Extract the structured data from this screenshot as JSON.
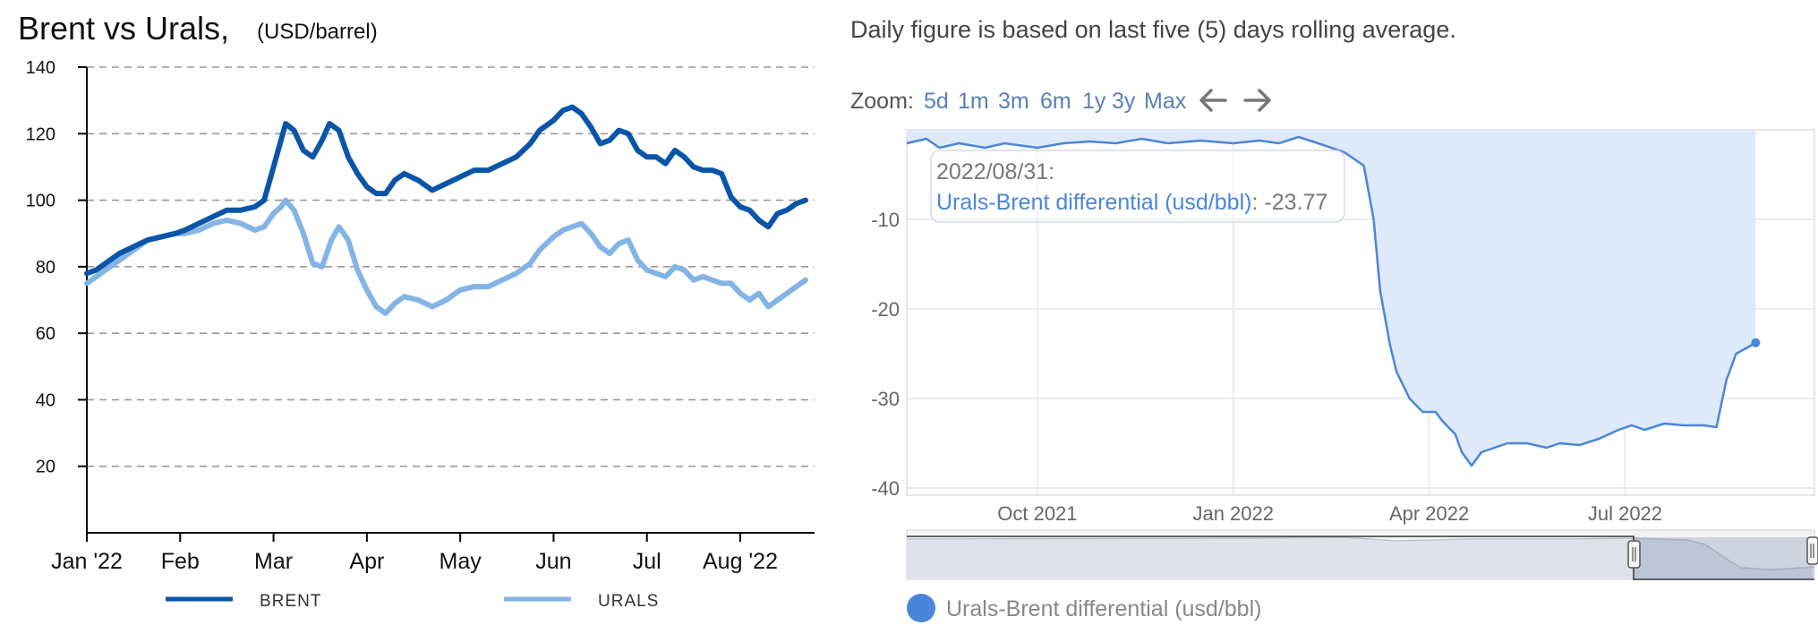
{
  "left_chart": {
    "title": "Brent vs Urals,",
    "subtitle": "(USD/barrel)",
    "chart_data": {
      "type": "line",
      "title": "Brent vs Urals,",
      "subtitle": "(USD/barrel)",
      "ylim": [
        0,
        140
      ],
      "y_ticks": [
        20,
        40,
        60,
        80,
        100,
        120,
        140
      ],
      "y_tick_labels": [
        "20",
        "40",
        "60",
        "80",
        "100",
        "120",
        "140"
      ],
      "x_tick_labels": [
        "Jan '22",
        "Feb",
        "Mar",
        "Apr",
        "May",
        "Jun",
        "Jul",
        "Aug '22"
      ],
      "grid": "horizontal dashed",
      "legend_position": "bottom",
      "x_is_month_index": true,
      "series": [
        {
          "name": "BRENT",
          "color": "#0a55a8",
          "points": [
            [
              0.0,
              78
            ],
            [
              0.1,
              79
            ],
            [
              0.2,
              81
            ],
            [
              0.35,
              84
            ],
            [
              0.5,
              86
            ],
            [
              0.65,
              88
            ],
            [
              0.8,
              89
            ],
            [
              0.95,
              90
            ],
            [
              1.05,
              91
            ],
            [
              1.2,
              93
            ],
            [
              1.35,
              95
            ],
            [
              1.5,
              97
            ],
            [
              1.65,
              97
            ],
            [
              1.8,
              98
            ],
            [
              1.9,
              100
            ],
            [
              2.0,
              110
            ],
            [
              2.08,
              118
            ],
            [
              2.13,
              123
            ],
            [
              2.22,
              121
            ],
            [
              2.32,
              115
            ],
            [
              2.42,
              113
            ],
            [
              2.52,
              118
            ],
            [
              2.6,
              123
            ],
            [
              2.7,
              121
            ],
            [
              2.8,
              113
            ],
            [
              2.9,
              108
            ],
            [
              3.0,
              104
            ],
            [
              3.1,
              102
            ],
            [
              3.2,
              102
            ],
            [
              3.3,
              106
            ],
            [
              3.4,
              108
            ],
            [
              3.55,
              106
            ],
            [
              3.7,
              103
            ],
            [
              3.85,
              105
            ],
            [
              4.0,
              107
            ],
            [
              4.15,
              109
            ],
            [
              4.3,
              109
            ],
            [
              4.45,
              111
            ],
            [
              4.6,
              113
            ],
            [
              4.75,
              117
            ],
            [
              4.85,
              121
            ],
            [
              5.0,
              124
            ],
            [
              5.1,
              127
            ],
            [
              5.2,
              128
            ],
            [
              5.3,
              126
            ],
            [
              5.4,
              122
            ],
            [
              5.5,
              117
            ],
            [
              5.6,
              118
            ],
            [
              5.7,
              121
            ],
            [
              5.8,
              120
            ],
            [
              5.9,
              115
            ],
            [
              6.0,
              113
            ],
            [
              6.1,
              113
            ],
            [
              6.2,
              111
            ],
            [
              6.3,
              115
            ],
            [
              6.4,
              113
            ],
            [
              6.5,
              110
            ],
            [
              6.6,
              109
            ],
            [
              6.7,
              109
            ],
            [
              6.8,
              108
            ],
            [
              6.9,
              101
            ],
            [
              7.0,
              98
            ],
            [
              7.1,
              97
            ],
            [
              7.2,
              94
            ],
            [
              7.3,
              92
            ],
            [
              7.4,
              96
            ],
            [
              7.5,
              97
            ],
            [
              7.6,
              99
            ],
            [
              7.7,
              100
            ]
          ]
        },
        {
          "name": "URALS",
          "color": "#82b4e6",
          "points": [
            [
              0.0,
              75
            ],
            [
              0.1,
              77
            ],
            [
              0.2,
              79
            ],
            [
              0.35,
              82
            ],
            [
              0.5,
              85
            ],
            [
              0.65,
              88
            ],
            [
              0.8,
              89
            ],
            [
              0.95,
              90
            ],
            [
              1.05,
              90
            ],
            [
              1.2,
              91
            ],
            [
              1.35,
              93
            ],
            [
              1.5,
              94
            ],
            [
              1.65,
              93
            ],
            [
              1.8,
              91
            ],
            [
              1.9,
              92
            ],
            [
              2.0,
              96
            ],
            [
              2.08,
              98
            ],
            [
              2.13,
              100
            ],
            [
              2.22,
              97
            ],
            [
              2.32,
              90
            ],
            [
              2.42,
              81
            ],
            [
              2.52,
              80
            ],
            [
              2.62,
              88
            ],
            [
              2.7,
              92
            ],
            [
              2.8,
              88
            ],
            [
              2.9,
              79
            ],
            [
              3.0,
              73
            ],
            [
              3.1,
              68
            ],
            [
              3.2,
              66
            ],
            [
              3.3,
              69
            ],
            [
              3.4,
              71
            ],
            [
              3.55,
              70
            ],
            [
              3.7,
              68
            ],
            [
              3.85,
              70
            ],
            [
              4.0,
              73
            ],
            [
              4.15,
              74
            ],
            [
              4.3,
              74
            ],
            [
              4.45,
              76
            ],
            [
              4.6,
              78
            ],
            [
              4.75,
              81
            ],
            [
              4.85,
              85
            ],
            [
              5.0,
              89
            ],
            [
              5.1,
              91
            ],
            [
              5.2,
              92
            ],
            [
              5.3,
              93
            ],
            [
              5.4,
              90
            ],
            [
              5.5,
              86
            ],
            [
              5.6,
              84
            ],
            [
              5.7,
              87
            ],
            [
              5.8,
              88
            ],
            [
              5.9,
              82
            ],
            [
              6.0,
              79
            ],
            [
              6.1,
              78
            ],
            [
              6.2,
              77
            ],
            [
              6.3,
              80
            ],
            [
              6.4,
              79
            ],
            [
              6.5,
              76
            ],
            [
              6.6,
              77
            ],
            [
              6.7,
              76
            ],
            [
              6.8,
              75
            ],
            [
              6.9,
              75
            ],
            [
              7.0,
              72
            ],
            [
              7.1,
              70
            ],
            [
              7.2,
              72
            ],
            [
              7.3,
              68
            ],
            [
              7.4,
              70
            ],
            [
              7.5,
              72
            ],
            [
              7.6,
              74
            ],
            [
              7.7,
              76
            ]
          ]
        }
      ]
    },
    "legend": [
      {
        "label": "BRENT",
        "color": "#0a55a8"
      },
      {
        "label": "URALS",
        "color": "#82b4e6"
      }
    ]
  },
  "right_chart": {
    "note": "Daily figure is based on last five (5) days rolling average.",
    "zoom": {
      "label": "Zoom:",
      "options": [
        "5d",
        "1m",
        "3m",
        "6m",
        "1y",
        "3y",
        "Max"
      ],
      "back_icon": "arrow-left-icon",
      "forward_icon": "arrow-right-icon"
    },
    "tooltip": {
      "date": "2022/08/31:",
      "series_label": "Urals-Brent differential (usd/bbl)",
      "value": "-23.77"
    },
    "legend_label": "Urals-Brent differential (usd/bbl)",
    "accent_color": "#4a86d8",
    "fill_color": "#deeaf9",
    "chart_data": {
      "type": "area",
      "ylim": [
        -40,
        0
      ],
      "y_ticks": [
        -40,
        -30,
        -20,
        -10
      ],
      "y_tick_labels": [
        "-40",
        "-30",
        "-20",
        "-10"
      ],
      "x_tick_labels": [
        "Oct 2021",
        "Jan 2022",
        "Apr 2022",
        "Jul 2022"
      ],
      "x_ticks_month_index": [
        2,
        5,
        8,
        11
      ],
      "x_range_month_index": [
        0,
        13.9
      ],
      "grid": "on",
      "series": [
        {
          "name": "Urals-Brent differential (usd/bbl)",
          "points": [
            [
              0.0,
              -1.5
            ],
            [
              0.3,
              -1.0
            ],
            [
              0.5,
              -2.0
            ],
            [
              0.8,
              -1.5
            ],
            [
              1.2,
              -2.0
            ],
            [
              1.5,
              -1.5
            ],
            [
              2.0,
              -2.0
            ],
            [
              2.4,
              -1.5
            ],
            [
              2.8,
              -1.3
            ],
            [
              3.2,
              -1.5
            ],
            [
              3.6,
              -1.0
            ],
            [
              4.0,
              -1.5
            ],
            [
              4.5,
              -1.2
            ],
            [
              5.0,
              -1.5
            ],
            [
              5.4,
              -1.2
            ],
            [
              5.7,
              -1.5
            ],
            [
              6.0,
              -0.8
            ],
            [
              6.3,
              -1.5
            ],
            [
              6.5,
              -2.0
            ],
            [
              6.7,
              -2.5
            ],
            [
              7.0,
              -4.0
            ],
            [
              7.15,
              -10.0
            ],
            [
              7.25,
              -18.0
            ],
            [
              7.4,
              -24.0
            ],
            [
              7.5,
              -27.0
            ],
            [
              7.7,
              -30.0
            ],
            [
              7.9,
              -31.5
            ],
            [
              8.1,
              -31.5
            ],
            [
              8.2,
              -32.5
            ],
            [
              8.4,
              -34.0
            ],
            [
              8.5,
              -36.0
            ],
            [
              8.65,
              -37.5
            ],
            [
              8.8,
              -36.0
            ],
            [
              9.0,
              -35.5
            ],
            [
              9.2,
              -35.0
            ],
            [
              9.5,
              -35.0
            ],
            [
              9.8,
              -35.5
            ],
            [
              10.0,
              -35.0
            ],
            [
              10.3,
              -35.2
            ],
            [
              10.6,
              -34.5
            ],
            [
              10.9,
              -33.5
            ],
            [
              11.1,
              -33.0
            ],
            [
              11.3,
              -33.5
            ],
            [
              11.6,
              -32.8
            ],
            [
              11.9,
              -33.0
            ],
            [
              12.2,
              -33.0
            ],
            [
              12.4,
              -33.2
            ],
            [
              12.55,
              -28.0
            ],
            [
              12.7,
              -25.0
            ],
            [
              12.9,
              -24.2
            ],
            [
              13.0,
              -23.77
            ]
          ]
        }
      ]
    }
  }
}
